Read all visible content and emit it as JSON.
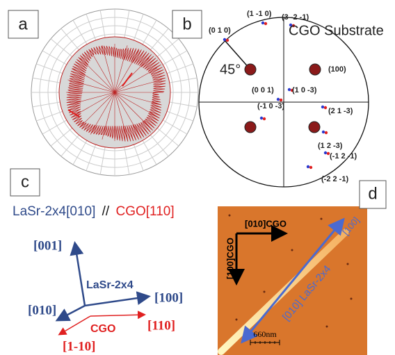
{
  "panels": {
    "a": {
      "label": "a"
    },
    "b": {
      "label": "b",
      "title": "CGO Substrate",
      "angle": "45°",
      "poles": [
        "(1 -1 0)",
        "(3 -2 -1)",
        "(0 1 0)",
        "(100)",
        "(0 0 1)",
        "(1 0 -3)",
        "(2 1 -3)",
        "(-1 0 -3)",
        "(1 2 -3)",
        "(-1 2 -1)",
        "(-2 2 -1)"
      ]
    },
    "c": {
      "label": "c",
      "relation": {
        "left": "LaSr-2x4[010]",
        "separator": "//",
        "right": "CGO[110]"
      },
      "axes": {
        "up": "[001]",
        "right": "[100]",
        "down_left": "[010]",
        "film": "LaSr-2x4",
        "substrate": "CGO",
        "red_right": "[110]",
        "red_down": "[1-10]"
      }
    },
    "d": {
      "label": "d",
      "horizontal": "[010]CGO",
      "vertical": "[100]CGO",
      "along": "[010] LaSr-2x4",
      "across": "[100]",
      "scale": "660nm"
    }
  }
}
